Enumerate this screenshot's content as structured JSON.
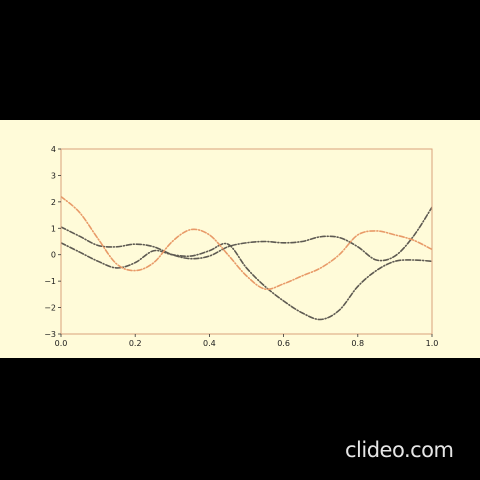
{
  "watermark": {
    "text": "clideo.com"
  },
  "colors": {
    "frame_background": "#000000",
    "plot_background": "#fffbd9",
    "axes_edge": "#d9a27c",
    "series_dark": "#5e5a52",
    "series_orange": "#e89a68"
  },
  "chart_data": {
    "type": "line",
    "title": "",
    "xlabel": "",
    "ylabel": "",
    "xlim": [
      0,
      1
    ],
    "ylim": [
      -3,
      4
    ],
    "grid": false,
    "x_ticks": [
      0.0,
      0.2,
      0.4,
      0.6,
      0.8,
      1.0
    ],
    "x_tick_labels": [
      "0.0",
      "0.2",
      "0.4",
      "0.6",
      "0.8",
      "1.0"
    ],
    "y_ticks": [
      -3,
      -2,
      -1,
      0,
      1,
      2,
      3,
      4
    ],
    "y_tick_labels": [
      "−3",
      "−2",
      "−1",
      "0",
      "1",
      "2",
      "3",
      "4"
    ],
    "series": [
      {
        "style": "dashdot",
        "color": "#5e5a52",
        "x": [
          0,
          0.05,
          0.1,
          0.15,
          0.2,
          0.25,
          0.3,
          0.35,
          0.4,
          0.45,
          0.5,
          0.55,
          0.6,
          0.65,
          0.7,
          0.75,
          0.8,
          0.85,
          0.9,
          0.95,
          1.0
        ],
        "y": [
          1.05,
          0.7,
          0.35,
          0.3,
          0.4,
          0.3,
          0.0,
          -0.15,
          -0.05,
          0.3,
          0.45,
          0.5,
          0.45,
          0.5,
          0.68,
          0.65,
          0.3,
          -0.2,
          -0.05,
          0.7,
          1.8
        ]
      },
      {
        "style": "dashdot",
        "color": "#5e5a52",
        "x": [
          0,
          0.05,
          0.1,
          0.15,
          0.2,
          0.25,
          0.3,
          0.35,
          0.4,
          0.45,
          0.5,
          0.55,
          0.6,
          0.65,
          0.7,
          0.75,
          0.8,
          0.85,
          0.9,
          0.95,
          1.0
        ],
        "y": [
          0.45,
          0.1,
          -0.25,
          -0.5,
          -0.3,
          0.15,
          0.0,
          -0.05,
          0.15,
          0.4,
          -0.5,
          -1.2,
          -1.75,
          -2.2,
          -2.45,
          -2.1,
          -1.2,
          -0.6,
          -0.25,
          -0.2,
          -0.25
        ]
      },
      {
        "style": "dashdot",
        "color": "#e89a68",
        "x": [
          0,
          0.05,
          0.1,
          0.15,
          0.2,
          0.25,
          0.3,
          0.35,
          0.4,
          0.45,
          0.5,
          0.55,
          0.6,
          0.65,
          0.7,
          0.75,
          0.8,
          0.85,
          0.9,
          0.95,
          1.0
        ],
        "y": [
          2.2,
          1.6,
          0.6,
          -0.35,
          -0.6,
          -0.3,
          0.5,
          0.95,
          0.75,
          0.0,
          -0.8,
          -1.3,
          -1.1,
          -0.8,
          -0.5,
          0.0,
          0.75,
          0.9,
          0.75,
          0.55,
          0.2
        ]
      }
    ]
  }
}
